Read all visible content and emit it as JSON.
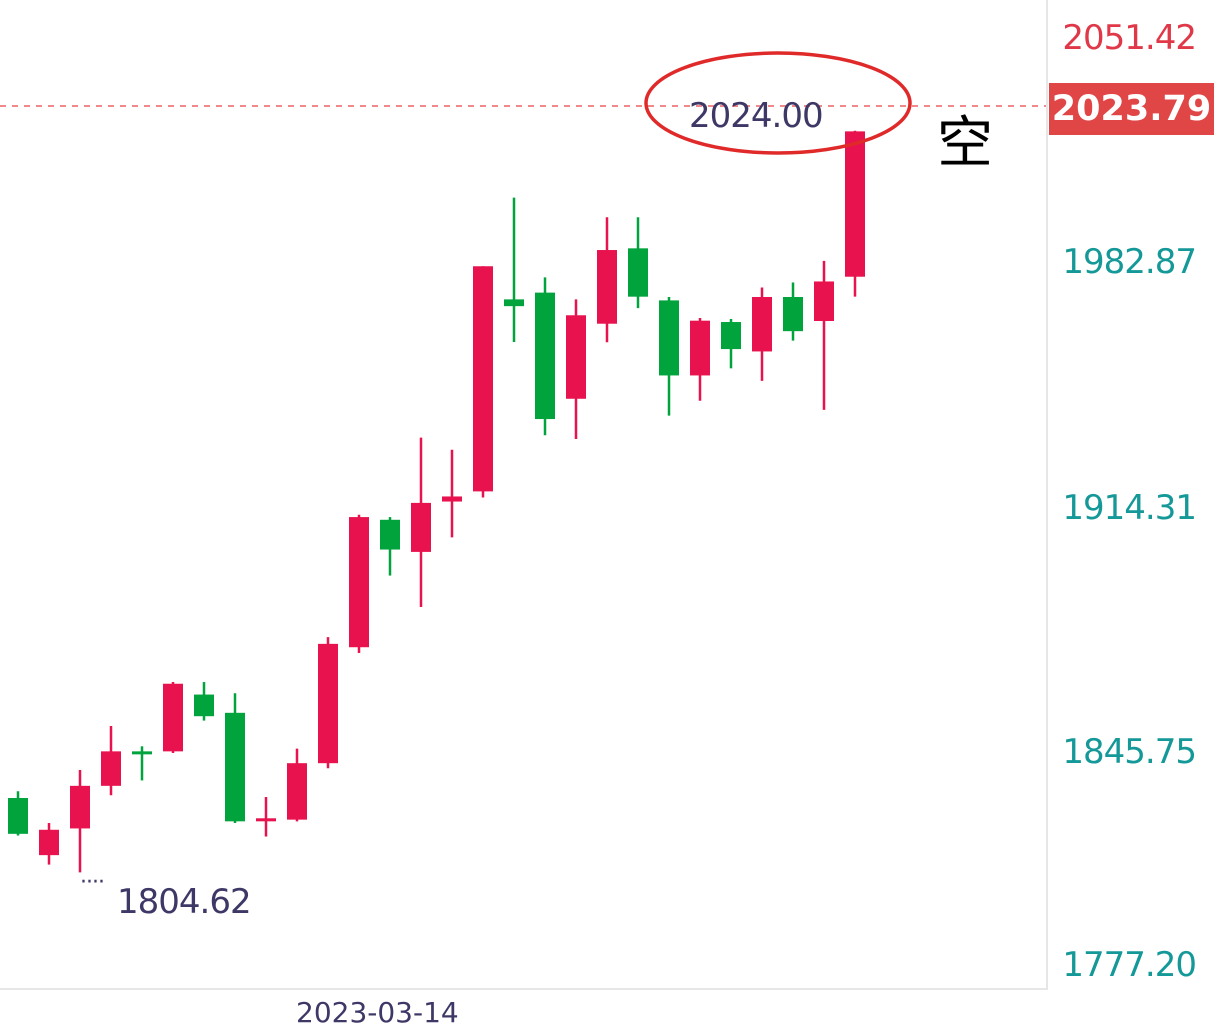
{
  "chart_data": {
    "type": "candlestick",
    "y_ticks": [
      "2051.42",
      "1982.87",
      "1914.31",
      "1845.75",
      "1777.20"
    ],
    "ylim": [
      1777.2,
      2051.42
    ],
    "last_price": "2023.79",
    "high_annotation": "2024.00",
    "low_annotation": "1804.62",
    "signal_label": "空",
    "date_label": "2023-03-14",
    "candles": [
      {
        "open": 1816.0,
        "close": 1826.6,
        "high": 1828.6,
        "low": 1815.5,
        "dir": "up"
      },
      {
        "open": 1817.2,
        "close": 1809.7,
        "high": 1819.2,
        "low": 1806.9,
        "dir": "down"
      },
      {
        "open": 1817.6,
        "close": 1830.2,
        "high": 1834.9,
        "low": 1804.6,
        "dir": "down"
      },
      {
        "open": 1830.2,
        "close": 1840.4,
        "high": 1847.9,
        "low": 1827.4,
        "dir": "down"
      },
      {
        "open": 1839.9,
        "close": 1840.4,
        "high": 1841.9,
        "low": 1831.8,
        "dir": "up"
      },
      {
        "open": 1840.4,
        "close": 1860.4,
        "high": 1860.9,
        "low": 1839.9,
        "dir": "down"
      },
      {
        "open": 1850.8,
        "close": 1857.2,
        "high": 1860.9,
        "low": 1849.5,
        "dir": "up"
      },
      {
        "open": 1851.8,
        "close": 1819.7,
        "high": 1857.6,
        "low": 1819.2,
        "dir": "up"
      },
      {
        "open": 1819.7,
        "close": 1820.6,
        "high": 1826.9,
        "low": 1815.2,
        "dir": "down"
      },
      {
        "open": 1820.2,
        "close": 1836.9,
        "high": 1841.2,
        "low": 1819.7,
        "dir": "down"
      },
      {
        "open": 1836.9,
        "close": 1872.2,
        "high": 1874.2,
        "low": 1835.4,
        "dir": "down"
      },
      {
        "open": 1871.2,
        "close": 1909.7,
        "high": 1910.4,
        "low": 1869.5,
        "dir": "down"
      },
      {
        "open": 1908.9,
        "close": 1900.1,
        "high": 1909.7,
        "low": 1892.4,
        "dir": "up"
      },
      {
        "open": 1899.4,
        "close": 1913.9,
        "high": 1933.2,
        "low": 1883.1,
        "dir": "down"
      },
      {
        "open": 1914.3,
        "close": 1915.8,
        "high": 1929.6,
        "low": 1903.7,
        "dir": "down"
      },
      {
        "open": 1917.3,
        "close": 1983.9,
        "high": 1983.9,
        "low": 1915.5,
        "dir": "down"
      },
      {
        "open": 1974.1,
        "close": 1972.1,
        "high": 2004.2,
        "low": 1961.5,
        "dir": "up"
      },
      {
        "open": 1976.1,
        "close": 1938.7,
        "high": 1980.6,
        "low": 1933.9,
        "dir": "up"
      },
      {
        "open": 1944.7,
        "close": 1969.4,
        "high": 1974.1,
        "low": 1932.8,
        "dir": "down"
      },
      {
        "open": 1966.9,
        "close": 1988.7,
        "high": 1998.4,
        "low": 1961.4,
        "dir": "down"
      },
      {
        "open": 1989.2,
        "close": 1974.9,
        "high": 1998.4,
        "low": 1971.5,
        "dir": "up"
      },
      {
        "open": 1973.8,
        "close": 1951.6,
        "high": 1974.8,
        "low": 1939.7,
        "dir": "up"
      },
      {
        "open": 1951.6,
        "close": 1967.8,
        "high": 1968.6,
        "low": 1944.1,
        "dir": "down"
      },
      {
        "open": 1967.4,
        "close": 1959.4,
        "high": 1968.3,
        "low": 1953.7,
        "dir": "up"
      },
      {
        "open": 1958.7,
        "close": 1974.8,
        "high": 1977.6,
        "low": 1950.0,
        "dir": "down"
      },
      {
        "open": 1974.8,
        "close": 1964.7,
        "high": 1979.1,
        "low": 1961.9,
        "dir": "up"
      },
      {
        "open": 1967.7,
        "close": 1979.4,
        "high": 1985.5,
        "low": 1941.4,
        "dir": "down"
      },
      {
        "open": 1980.8,
        "close": 2023.8,
        "high": 2024.0,
        "low": 1974.9,
        "dir": "down"
      }
    ]
  },
  "colors": {
    "up_candle": "#00a33c",
    "down_candle": "#e8124e",
    "top_tick": "#e03848",
    "tick": "#149898",
    "price_line": "#f08a8a",
    "last_tag_bg": "#e04646",
    "ellipse": "#e02a2a"
  }
}
